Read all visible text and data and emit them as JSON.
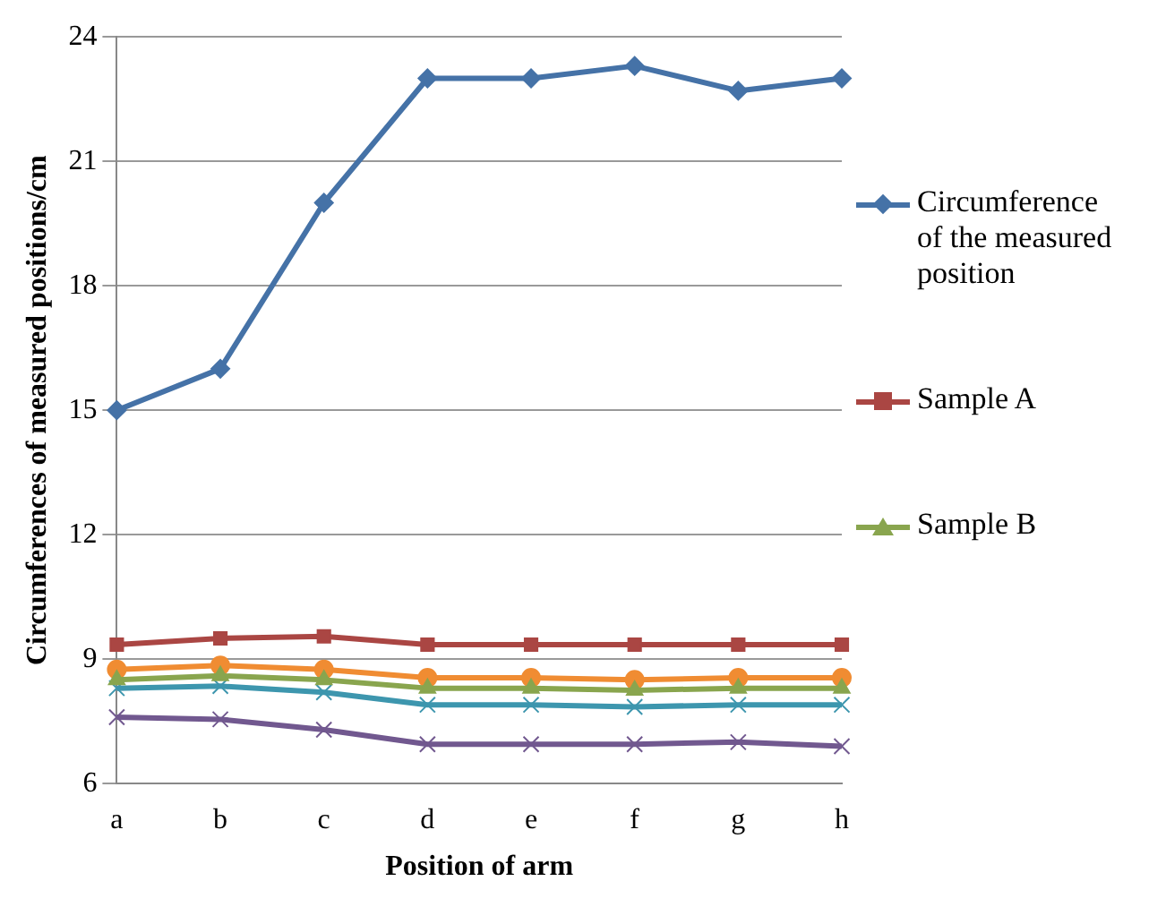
{
  "chart_data": {
    "type": "line",
    "xlabel": "Position of arm",
    "ylabel": "Circumferences of measured positions/cm",
    "categories": [
      "a",
      "b",
      "c",
      "d",
      "e",
      "f",
      "g",
      "h"
    ],
    "series": [
      {
        "name": "Circumference of the measured position",
        "color": "#4572a7",
        "marker": "diamond",
        "values": [
          15,
          16,
          20,
          23,
          23,
          23.3,
          22.7,
          23
        ]
      },
      {
        "name": "Sample A",
        "color": "#aa4643",
        "marker": "square",
        "values": [
          9.35,
          9.5,
          9.55,
          9.35,
          9.35,
          9.35,
          9.35,
          9.35
        ]
      },
      {
        "name": "Sample B",
        "color": "#89a54e",
        "marker": "triangle",
        "values": [
          8.5,
          8.6,
          8.5,
          8.3,
          8.3,
          8.25,
          8.3,
          8.3
        ]
      },
      {
        "color": "#f08c32",
        "marker": "circle",
        "values": [
          8.75,
          8.85,
          8.75,
          8.55,
          8.55,
          8.5,
          8.55,
          8.55
        ]
      },
      {
        "color": "#3d96ae",
        "marker": "cross",
        "values": [
          8.3,
          8.35,
          8.2,
          7.9,
          7.9,
          7.85,
          7.9,
          7.9
        ]
      },
      {
        "color": "#71588f",
        "marker": "cross",
        "values": [
          7.6,
          7.55,
          7.3,
          6.95,
          6.95,
          6.95,
          7.0,
          6.9
        ]
      }
    ],
    "ylim": [
      6,
      24
    ],
    "yticks": [
      6,
      9,
      12,
      15,
      18,
      21,
      24
    ],
    "grid": "y",
    "legend": "right"
  }
}
